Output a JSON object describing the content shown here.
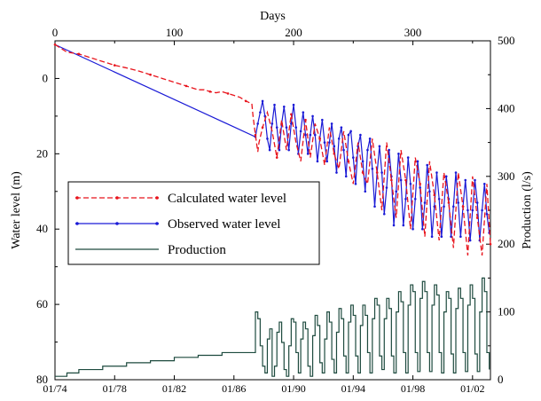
{
  "chart_data": {
    "type": "line",
    "xlabel_top": "Days",
    "ylabel_left": "Water level (m)",
    "ylabel_right": "Production (l/s)",
    "top_axis": {
      "range": [
        0,
        365
      ],
      "ticks": [
        0,
        100,
        200,
        300
      ]
    },
    "bottom_axis": {
      "ticks": [
        "01/74",
        "01/78",
        "01/82",
        "01/86",
        "01/90",
        "01/94",
        "01/98",
        "01/02"
      ]
    },
    "left_axis": {
      "range": [
        80,
        -10
      ],
      "inverted": true,
      "ticks": [
        0,
        20,
        40,
        60,
        80
      ]
    },
    "right_axis": {
      "range": [
        0,
        500
      ],
      "ticks": [
        0,
        100,
        200,
        300,
        400,
        500
      ]
    },
    "legend": {
      "placement": "center-left",
      "entries": [
        "Calculated water level",
        "Observed water level",
        "Production"
      ]
    },
    "colors": {
      "calculated": "#e8141c",
      "observed": "#1a1ad6",
      "production": "#1d4a3e"
    },
    "series": [
      {
        "name": "Calculated water level",
        "axis": "left",
        "style": "dashed",
        "x": [
          0,
          5,
          10,
          20,
          30,
          40,
          50,
          60,
          70,
          80,
          90,
          100,
          110,
          120,
          125,
          130,
          135,
          140,
          145,
          150,
          155,
          160,
          165,
          166,
          168,
          170,
          171,
          174,
          178,
          182,
          186,
          190,
          194,
          198,
          202,
          206,
          210,
          214,
          218,
          222,
          226,
          230,
          234,
          238,
          242,
          246,
          250,
          254,
          258,
          262,
          266,
          270,
          274,
          278,
          282,
          286,
          290,
          294,
          298,
          302,
          306,
          310,
          314,
          318,
          322,
          326,
          330,
          334,
          338,
          342,
          346,
          350,
          354,
          358,
          362,
          365
        ],
        "y": [
          -9,
          -8,
          -7,
          -6.5,
          -5.5,
          -4.5,
          -3.5,
          -2.8,
          -2,
          -1,
          0,
          1,
          2,
          3,
          3,
          3.5,
          3.8,
          3.5,
          4,
          4.5,
          5,
          6,
          6.7,
          10,
          15,
          19.5,
          17,
          13,
          9,
          14,
          21,
          11,
          19,
          9.5,
          17,
          22,
          11,
          21,
          12,
          16,
          23,
          13,
          20,
          24,
          14,
          22,
          28,
          17,
          25,
          28,
          16,
          25,
          35,
          17,
          27,
          37,
          19,
          27,
          40,
          21,
          28,
          42,
          22,
          31,
          43,
          25,
          33,
          45,
          25,
          34,
          47,
          26,
          37,
          47,
          28,
          44
        ]
      },
      {
        "name": "Observed water level",
        "axis": "left",
        "style": "solid",
        "x": [
          0,
          168,
          170,
          172,
          174,
          176,
          178,
          180,
          182,
          184,
          186,
          188,
          190,
          192,
          194,
          196,
          198,
          200,
          202,
          204,
          206,
          208,
          210,
          212,
          214,
          216,
          218,
          220,
          222,
          224,
          226,
          228,
          230,
          232,
          234,
          236,
          238,
          240,
          242,
          244,
          246,
          248,
          250,
          252,
          254,
          256,
          258,
          260,
          262,
          264,
          266,
          268,
          270,
          272,
          274,
          276,
          278,
          280,
          282,
          284,
          286,
          288,
          290,
          292,
          294,
          296,
          298,
          300,
          302,
          304,
          306,
          308,
          310,
          312,
          314,
          316,
          318,
          320,
          322,
          324,
          326,
          328,
          330,
          332,
          334,
          336,
          338,
          340,
          342,
          344,
          346,
          348,
          350,
          352,
          354,
          356,
          358,
          360,
          362,
          364
        ],
        "y": [
          -9,
          15.5,
          12,
          9,
          6,
          10,
          16,
          19,
          12,
          7,
          13,
          19,
          12,
          7.5,
          13,
          19,
          12,
          7,
          13,
          20,
          14,
          9,
          15,
          20,
          15,
          10,
          15,
          22,
          16,
          11,
          17,
          22,
          17,
          12,
          18,
          25,
          16,
          13,
          19,
          26,
          15,
          14,
          21,
          28,
          18,
          15,
          22,
          30,
          19,
          16,
          24,
          34,
          25,
          18,
          25,
          36,
          29,
          19,
          26,
          39,
          30,
          20,
          27,
          39,
          32,
          21,
          28,
          40,
          32,
          22,
          29,
          40,
          33,
          23,
          30,
          42,
          34,
          25,
          32,
          42,
          34,
          26,
          32,
          42,
          34,
          25,
          33,
          42,
          34,
          27,
          35,
          43,
          35,
          27,
          33,
          43,
          35,
          28,
          36,
          41
        ]
      },
      {
        "name": "Production",
        "axis": "right",
        "style": "step",
        "x": [
          0,
          10,
          20,
          40,
          60,
          80,
          100,
          120,
          140,
          168,
          170,
          172,
          174,
          176,
          178,
          180,
          182,
          184,
          186,
          188,
          190,
          192,
          194,
          196,
          198,
          200,
          202,
          204,
          206,
          208,
          210,
          212,
          214,
          216,
          218,
          220,
          222,
          224,
          226,
          228,
          230,
          232,
          234,
          236,
          238,
          240,
          242,
          244,
          246,
          248,
          250,
          252,
          254,
          256,
          258,
          260,
          262,
          264,
          266,
          268,
          270,
          272,
          274,
          276,
          278,
          280,
          282,
          284,
          286,
          288,
          290,
          292,
          294,
          296,
          298,
          300,
          302,
          304,
          306,
          308,
          310,
          312,
          314,
          316,
          318,
          320,
          322,
          324,
          326,
          328,
          330,
          332,
          334,
          336,
          338,
          340,
          342,
          344,
          346,
          348,
          350,
          352,
          354,
          356,
          358,
          360,
          362,
          364
        ],
        "y": [
          5,
          10,
          15,
          20,
          25,
          28,
          33,
          36,
          40,
          100,
          90,
          50,
          20,
          10,
          60,
          75,
          5,
          20,
          70,
          85,
          55,
          15,
          5,
          50,
          90,
          85,
          40,
          10,
          60,
          85,
          75,
          20,
          5,
          65,
          95,
          80,
          25,
          10,
          60,
          100,
          85,
          30,
          10,
          70,
          105,
          90,
          35,
          10,
          85,
          110,
          95,
          35,
          10,
          80,
          110,
          95,
          40,
          10,
          90,
          120,
          110,
          35,
          15,
          90,
          120,
          105,
          35,
          10,
          100,
          130,
          115,
          40,
          10,
          110,
          140,
          130,
          40,
          12,
          120,
          145,
          130,
          40,
          12,
          110,
          140,
          125,
          40,
          10,
          100,
          130,
          120,
          38,
          10,
          105,
          135,
          120,
          40,
          12,
          110,
          140,
          120,
          38,
          12,
          100,
          150,
          130,
          40,
          15
        ]
      }
    ]
  }
}
